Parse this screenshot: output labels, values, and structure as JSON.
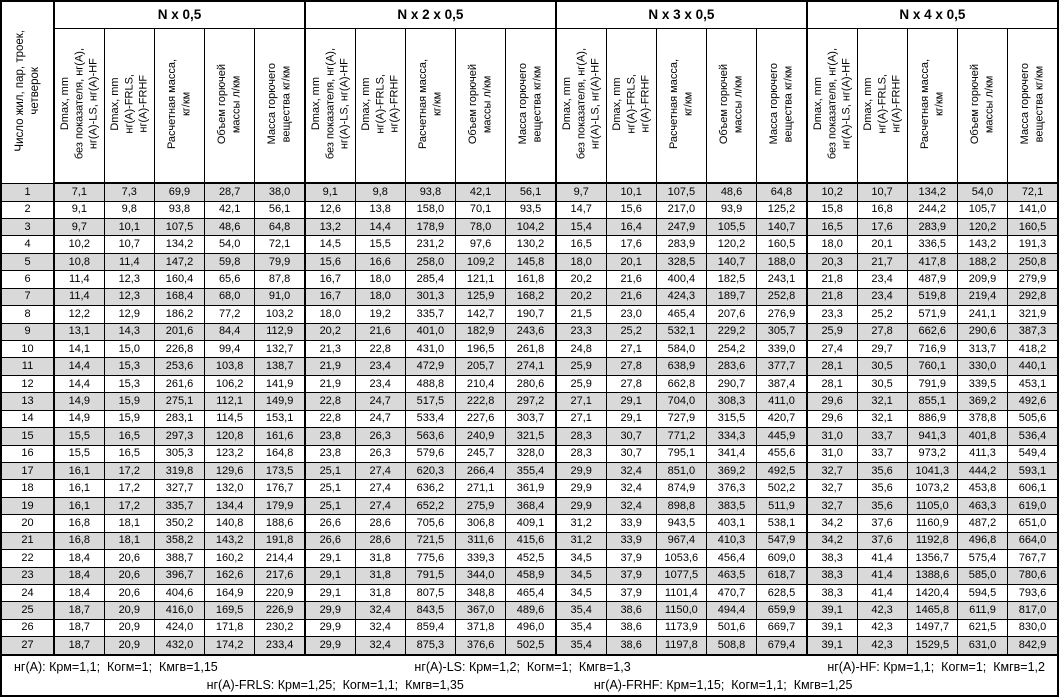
{
  "title_column": {
    "label_lines": [
      "Число жил, пар, троек,",
      "четверок"
    ]
  },
  "groups": [
    {
      "title": "N x 0,5"
    },
    {
      "title": "N x 2 x 0,5"
    },
    {
      "title": "N x 3 x 0,5"
    },
    {
      "title": "N x 4 x 0,5"
    }
  ],
  "column_headers": [
    {
      "name": "dmax-basic",
      "lines": [
        "Dmax, mm",
        "без показателя, нг(А),",
        "нг(А)-LS, нг(А)-HF"
      ]
    },
    {
      "name": "dmax-fr",
      "lines": [
        "Dmax, mm",
        "нг(А)-FRLS,",
        "нг(А)-FRHF"
      ]
    },
    {
      "name": "calc-mass",
      "lines": [
        "Расчетная масса,",
        "кг/км"
      ]
    },
    {
      "name": "combustible-volume",
      "lines": [
        "Объем горючей",
        "массы л/км"
      ]
    },
    {
      "name": "combustible-mass",
      "lines": [
        "Масса горючего",
        "вещества кг/км"
      ]
    }
  ],
  "rows": [
    [
      "1",
      "7,1",
      "7,3",
      "69,9",
      "28,7",
      "38,0",
      "9,1",
      "9,8",
      "93,8",
      "42,1",
      "56,1",
      "9,7",
      "10,1",
      "107,5",
      "48,6",
      "64,8",
      "10,2",
      "10,7",
      "134,2",
      "54,0",
      "72,1"
    ],
    [
      "2",
      "9,1",
      "9,8",
      "93,8",
      "42,1",
      "56,1",
      "12,6",
      "13,8",
      "158,0",
      "70,1",
      "93,5",
      "14,7",
      "15,6",
      "217,0",
      "93,9",
      "125,2",
      "15,8",
      "16,8",
      "244,2",
      "105,7",
      "141,0"
    ],
    [
      "3",
      "9,7",
      "10,1",
      "107,5",
      "48,6",
      "64,8",
      "13,2",
      "14,4",
      "178,9",
      "78,0",
      "104,2",
      "15,4",
      "16,4",
      "247,9",
      "105,5",
      "140,7",
      "16,5",
      "17,6",
      "283,9",
      "120,2",
      "160,5"
    ],
    [
      "4",
      "10,2",
      "10,7",
      "134,2",
      "54,0",
      "72,1",
      "14,5",
      "15,5",
      "231,2",
      "97,6",
      "130,2",
      "16,5",
      "17,6",
      "283,9",
      "120,2",
      "160,5",
      "18,0",
      "20,1",
      "336,5",
      "143,2",
      "191,3"
    ],
    [
      "5",
      "10,8",
      "11,4",
      "147,2",
      "59,8",
      "79,9",
      "15,6",
      "16,6",
      "258,0",
      "109,2",
      "145,8",
      "18,0",
      "20,1",
      "328,5",
      "140,7",
      "188,0",
      "20,3",
      "21,7",
      "417,8",
      "188,2",
      "250,8"
    ],
    [
      "6",
      "11,4",
      "12,3",
      "160,4",
      "65,6",
      "87,8",
      "16,7",
      "18,0",
      "285,4",
      "121,1",
      "161,8",
      "20,2",
      "21,6",
      "400,4",
      "182,5",
      "243,1",
      "21,8",
      "23,4",
      "487,9",
      "209,9",
      "279,9"
    ],
    [
      "7",
      "11,4",
      "12,3",
      "168,4",
      "68,0",
      "91,0",
      "16,7",
      "18,0",
      "301,3",
      "125,9",
      "168,2",
      "20,2",
      "21,6",
      "424,3",
      "189,7",
      "252,8",
      "21,8",
      "23,4",
      "519,8",
      "219,4",
      "292,8"
    ],
    [
      "8",
      "12,2",
      "12,9",
      "186,2",
      "77,2",
      "103,2",
      "18,0",
      "19,2",
      "335,7",
      "142,7",
      "190,7",
      "21,5",
      "23,0",
      "465,4",
      "207,6",
      "276,9",
      "23,3",
      "25,2",
      "571,9",
      "241,1",
      "321,9"
    ],
    [
      "9",
      "13,1",
      "14,3",
      "201,6",
      "84,4",
      "112,9",
      "20,2",
      "21,6",
      "401,0",
      "182,9",
      "243,6",
      "23,3",
      "25,2",
      "532,1",
      "229,2",
      "305,7",
      "25,9",
      "27,8",
      "662,6",
      "290,6",
      "387,3"
    ],
    [
      "10",
      "14,1",
      "15,0",
      "226,8",
      "99,4",
      "132,7",
      "21,3",
      "22,8",
      "431,0",
      "196,5",
      "261,8",
      "24,8",
      "27,1",
      "584,0",
      "254,2",
      "339,0",
      "27,4",
      "29,7",
      "716,9",
      "313,7",
      "418,2"
    ],
    [
      "11",
      "14,4",
      "15,3",
      "253,6",
      "103,8",
      "138,7",
      "21,9",
      "23,4",
      "472,9",
      "205,7",
      "274,1",
      "25,9",
      "27,8",
      "638,9",
      "283,6",
      "377,7",
      "28,1",
      "30,5",
      "760,1",
      "330,0",
      "440,1"
    ],
    [
      "12",
      "14,4",
      "15,3",
      "261,6",
      "106,2",
      "141,9",
      "21,9",
      "23,4",
      "488,8",
      "210,4",
      "280,6",
      "25,9",
      "27,8",
      "662,8",
      "290,7",
      "387,4",
      "28,1",
      "30,5",
      "791,9",
      "339,5",
      "453,1"
    ],
    [
      "13",
      "14,9",
      "15,9",
      "275,1",
      "112,1",
      "149,9",
      "22,8",
      "24,7",
      "517,5",
      "222,8",
      "297,2",
      "27,1",
      "29,1",
      "704,0",
      "308,3",
      "411,0",
      "29,6",
      "32,1",
      "855,1",
      "369,2",
      "492,6"
    ],
    [
      "14",
      "14,9",
      "15,9",
      "283,1",
      "114,5",
      "153,1",
      "22,8",
      "24,7",
      "533,4",
      "227,6",
      "303,7",
      "27,1",
      "29,1",
      "727,9",
      "315,5",
      "420,7",
      "29,6",
      "32,1",
      "886,9",
      "378,8",
      "505,6"
    ],
    [
      "15",
      "15,5",
      "16,5",
      "297,3",
      "120,8",
      "161,6",
      "23,8",
      "26,3",
      "563,6",
      "240,9",
      "321,5",
      "28,3",
      "30,7",
      "771,2",
      "334,3",
      "445,9",
      "31,0",
      "33,7",
      "941,3",
      "401,8",
      "536,4"
    ],
    [
      "16",
      "15,5",
      "16,5",
      "305,3",
      "123,2",
      "164,8",
      "23,8",
      "26,3",
      "579,6",
      "245,7",
      "328,0",
      "28,3",
      "30,7",
      "795,1",
      "341,4",
      "455,6",
      "31,0",
      "33,7",
      "973,2",
      "411,3",
      "549,4"
    ],
    [
      "17",
      "16,1",
      "17,2",
      "319,8",
      "129,6",
      "173,5",
      "25,1",
      "27,4",
      "620,3",
      "266,4",
      "355,4",
      "29,9",
      "32,4",
      "851,0",
      "369,2",
      "492,5",
      "32,7",
      "35,6",
      "1041,3",
      "444,2",
      "593,1"
    ],
    [
      "18",
      "16,1",
      "17,2",
      "327,7",
      "132,0",
      "176,7",
      "25,1",
      "27,4",
      "636,2",
      "271,1",
      "361,9",
      "29,9",
      "32,4",
      "874,9",
      "376,3",
      "502,2",
      "32,7",
      "35,6",
      "1073,2",
      "453,8",
      "606,1"
    ],
    [
      "19",
      "16,1",
      "17,2",
      "335,7",
      "134,4",
      "179,9",
      "25,1",
      "27,4",
      "652,2",
      "275,9",
      "368,4",
      "29,9",
      "32,4",
      "898,8",
      "383,5",
      "511,9",
      "32,7",
      "35,6",
      "1105,0",
      "463,3",
      "619,0"
    ],
    [
      "20",
      "16,8",
      "18,1",
      "350,2",
      "140,8",
      "188,6",
      "26,6",
      "28,6",
      "705,6",
      "306,8",
      "409,1",
      "31,2",
      "33,9",
      "943,5",
      "403,1",
      "538,1",
      "34,2",
      "37,6",
      "1160,9",
      "487,2",
      "651,0"
    ],
    [
      "21",
      "16,8",
      "18,1",
      "358,2",
      "143,2",
      "191,8",
      "26,6",
      "28,6",
      "721,5",
      "311,6",
      "415,6",
      "31,2",
      "33,9",
      "967,4",
      "410,3",
      "547,9",
      "34,2",
      "37,6",
      "1192,8",
      "496,8",
      "664,0"
    ],
    [
      "22",
      "18,4",
      "20,6",
      "388,7",
      "160,2",
      "214,4",
      "29,1",
      "31,8",
      "775,6",
      "339,3",
      "452,5",
      "34,5",
      "37,9",
      "1053,6",
      "456,4",
      "609,0",
      "38,3",
      "41,4",
      "1356,7",
      "575,4",
      "767,7"
    ],
    [
      "23",
      "18,4",
      "20,6",
      "396,7",
      "162,6",
      "217,6",
      "29,1",
      "31,8",
      "791,5",
      "344,0",
      "458,9",
      "34,5",
      "37,9",
      "1077,5",
      "463,5",
      "618,7",
      "38,3",
      "41,4",
      "1388,6",
      "585,0",
      "780,6"
    ],
    [
      "24",
      "18,4",
      "20,6",
      "404,6",
      "164,9",
      "220,9",
      "29,1",
      "31,8",
      "807,5",
      "348,8",
      "465,4",
      "34,5",
      "37,9",
      "1101,4",
      "470,7",
      "628,5",
      "38,3",
      "41,4",
      "1420,4",
      "594,5",
      "793,6"
    ],
    [
      "25",
      "18,7",
      "20,9",
      "416,0",
      "169,5",
      "226,9",
      "29,9",
      "32,4",
      "843,5",
      "367,0",
      "489,6",
      "35,4",
      "38,6",
      "1150,0",
      "494,4",
      "659,9",
      "39,1",
      "42,3",
      "1465,8",
      "611,9",
      "817,0"
    ],
    [
      "26",
      "18,7",
      "20,9",
      "424,0",
      "171,8",
      "230,2",
      "29,9",
      "32,4",
      "859,4",
      "371,8",
      "496,0",
      "35,4",
      "38,6",
      "1173,9",
      "501,6",
      "669,7",
      "39,1",
      "42,3",
      "1497,7",
      "621,5",
      "830,0"
    ],
    [
      "27",
      "18,7",
      "20,9",
      "432,0",
      "174,2",
      "233,4",
      "29,9",
      "32,4",
      "875,3",
      "376,6",
      "502,5",
      "35,4",
      "38,6",
      "1197,8",
      "508,8",
      "679,4",
      "39,1",
      "42,3",
      "1529,5",
      "631,0",
      "842,9"
    ]
  ],
  "footnotes": {
    "line1": [
      "нг(А): Крм=1,1;  Когм=1;  Кмгв=1,15",
      "нг(А)-LS: Крм=1,2;  Когм=1;  Кмгв=1,3",
      "нг(А)-HF: Крм=1,1;  Когм=1;  Кмгв=1,2"
    ],
    "line2": [
      "нг(А)-FRLS: Крм=1,25;  Когм=1,1;  Кмгв=1,35",
      "нг(А)-FRHF: Крм=1,15;  Когм=1,1;  Кмгв=1,25"
    ]
  },
  "colors": {
    "stripe": "#d9d9d9",
    "border": "#000000",
    "background": "#ffffff"
  }
}
